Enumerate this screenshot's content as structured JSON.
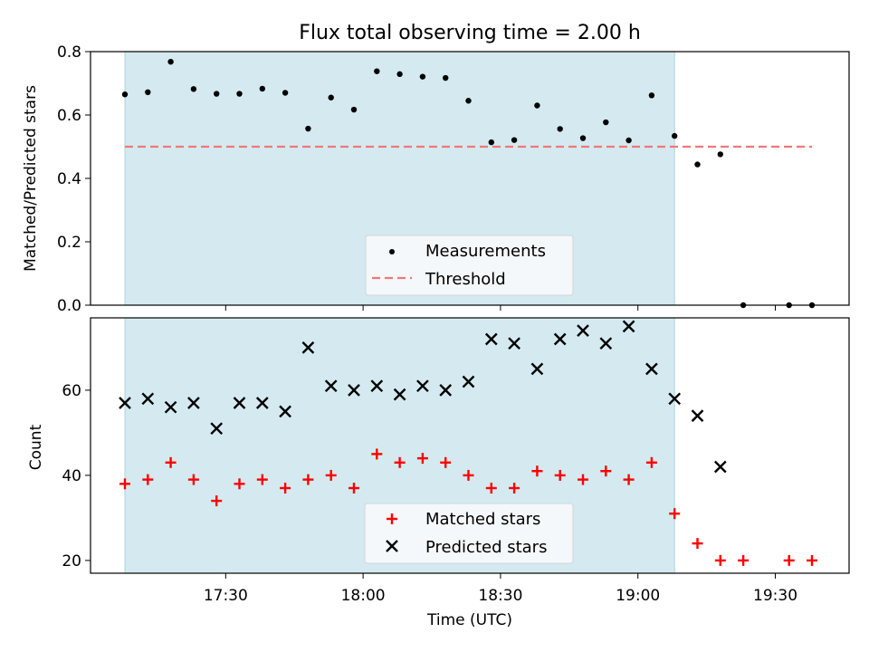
{
  "chart_data": [
    {
      "type": "scatter",
      "title": "Flux total observing time = 2.00 h",
      "ylabel": "Matched/Predicted stars",
      "xlabel": "",
      "ylim": [
        0,
        0.8
      ],
      "yticks": [
        "0.0",
        "0.2",
        "0.4",
        "0.6",
        "0.8"
      ],
      "shaded_interval": [
        "17:08",
        "19:08"
      ],
      "series": [
        {
          "name": "Measurements",
          "marker": "dot",
          "color": "#000000",
          "x": [
            "17:08",
            "17:13",
            "17:18",
            "17:23",
            "17:28",
            "17:33",
            "17:38",
            "17:43",
            "17:48",
            "17:53",
            "17:58",
            "18:03",
            "18:08",
            "18:13",
            "18:18",
            "18:23",
            "18:28",
            "18:33",
            "18:38",
            "18:43",
            "18:48",
            "18:53",
            "18:58",
            "19:03",
            "19:08",
            "19:13",
            "19:18",
            "19:23",
            "19:33",
            "19:38"
          ],
          "y": [
            0.665,
            0.672,
            0.768,
            0.682,
            0.667,
            0.667,
            0.683,
            0.67,
            0.557,
            0.655,
            0.617,
            0.738,
            0.729,
            0.721,
            0.717,
            0.645,
            0.514,
            0.521,
            0.63,
            0.556,
            0.527,
            0.577,
            0.52,
            0.662,
            0.534,
            0.444,
            0.476,
            0,
            0,
            0
          ]
        },
        {
          "name": "Threshold",
          "type": "line",
          "style": "dashed",
          "color": "#f07878",
          "x": [
            "17:08",
            "19:38"
          ],
          "y": [
            0.5,
            0.5
          ]
        }
      ],
      "legend_placement": "lower-center"
    },
    {
      "type": "scatter",
      "xlabel": "Time (UTC)",
      "ylabel": "Count",
      "ylim": [
        17,
        77
      ],
      "yticks": [
        "20",
        "40",
        "60"
      ],
      "xticks": [
        "17:30",
        "18:00",
        "18:30",
        "19:00",
        "19:30"
      ],
      "shaded_interval": [
        "17:08",
        "19:08"
      ],
      "series": [
        {
          "name": "Matched stars",
          "marker": "plus",
          "color": "#ff0000",
          "x": [
            "17:08",
            "17:13",
            "17:18",
            "17:23",
            "17:28",
            "17:33",
            "17:38",
            "17:43",
            "17:48",
            "17:53",
            "17:58",
            "18:03",
            "18:08",
            "18:13",
            "18:18",
            "18:23",
            "18:28",
            "18:33",
            "18:38",
            "18:43",
            "18:48",
            "18:53",
            "18:58",
            "19:03",
            "19:08",
            "19:13",
            "19:18",
            "19:23",
            "19:33",
            "19:38"
          ],
          "y": [
            38,
            39,
            43,
            39,
            34,
            38,
            39,
            37,
            39,
            40,
            37,
            45,
            43,
            44,
            43,
            40,
            37,
            37,
            41,
            40,
            39,
            41,
            39,
            43,
            31,
            24,
            20,
            20,
            20,
            20
          ]
        },
        {
          "name": "Predicted stars",
          "marker": "x",
          "color": "#000000",
          "x": [
            "17:08",
            "17:13",
            "17:18",
            "17:23",
            "17:28",
            "17:33",
            "17:38",
            "17:43",
            "17:48",
            "17:53",
            "17:58",
            "18:03",
            "18:08",
            "18:13",
            "18:18",
            "18:23",
            "18:28",
            "18:33",
            "18:38",
            "18:43",
            "18:48",
            "18:53",
            "18:58",
            "19:03",
            "19:08",
            "19:13",
            "19:18"
          ],
          "y": [
            57,
            58,
            56,
            57,
            51,
            57,
            57,
            55,
            70,
            61,
            60,
            61,
            59,
            61,
            60,
            62,
            72,
            71,
            65,
            72,
            74,
            71,
            75,
            65,
            58,
            54,
            42
          ]
        }
      ],
      "legend_placement": "lower-center"
    }
  ],
  "colors": {
    "shade": "#d4eaf0",
    "shade_edge": "#a8d6dd",
    "legend_bg": "#f5f8fa"
  }
}
